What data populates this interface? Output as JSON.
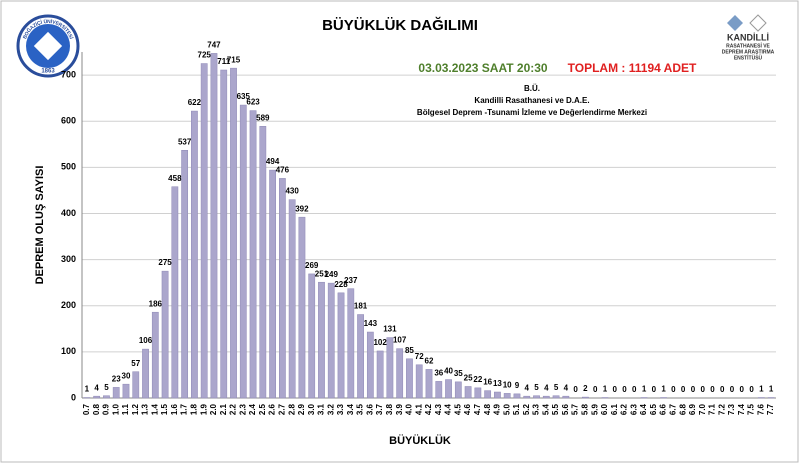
{
  "chart_data": {
    "type": "bar",
    "title": "BÜYÜKLÜK DAĞILIMI",
    "date_text": "03.03.2023 SAAT 20:30",
    "total_text": "TOPLAM : 11194 ADET",
    "subtitle_lines": [
      "B.Ü.",
      "Kandilli Rasathanesi ve D.A.E.",
      "Bölgesel Deprem -Tsunami İzleme ve Değerlendirme Merkezi"
    ],
    "x_label": "BÜYÜKLÜK",
    "y_label": "DEPREM OLUŞ SAYISI",
    "categories": [
      "0.7",
      "0.8",
      "0.9",
      "1.0",
      "1.1",
      "1.2",
      "1.3",
      "1.4",
      "1.5",
      "1.6",
      "1.7",
      "1.8",
      "1.9",
      "2.0",
      "2.1",
      "2.2",
      "2.3",
      "2.4",
      "2.5",
      "2.6",
      "2.7",
      "2.8",
      "2.9",
      "3.0",
      "3.1",
      "3.2",
      "3.3",
      "3.4",
      "3.5",
      "3.6",
      "3.7",
      "3.8",
      "3.9",
      "4.0",
      "4.1",
      "4.2",
      "4.3",
      "4.4",
      "4.5",
      "4.6",
      "4.7",
      "4.8",
      "4.9",
      "5.0",
      "5.1",
      "5.2",
      "5.3",
      "5.4",
      "5.5",
      "5.6",
      "5.7",
      "5.8",
      "5.9",
      "6.0",
      "6.1",
      "6.2",
      "6.3",
      "6.4",
      "6.5",
      "6.6",
      "6.7",
      "6.8",
      "6.9",
      "7.0",
      "7.1",
      "7.2",
      "7.3",
      "7.4",
      "7.5",
      "7.6",
      "7.7"
    ],
    "values": [
      1,
      4,
      5,
      23,
      30,
      57,
      106,
      186,
      275,
      458,
      537,
      622,
      725,
      747,
      711,
      715,
      635,
      623,
      589,
      494,
      476,
      430,
      392,
      269,
      251,
      249,
      228,
      237,
      181,
      143,
      102,
      131,
      107,
      85,
      72,
      62,
      36,
      40,
      35,
      25,
      22,
      16,
      13,
      10,
      9,
      4,
      5,
      4,
      5,
      4,
      0,
      2,
      0,
      1,
      0,
      0,
      0,
      1,
      0,
      1,
      0,
      0,
      0,
      0,
      0,
      0,
      0,
      0,
      0,
      1,
      1
    ],
    "color": "#aba6cc",
    "ylim": [
      0,
      750
    ],
    "yticks": [
      0,
      100,
      200,
      300,
      400,
      500,
      600,
      700
    ],
    "grid": true
  },
  "logos": {
    "left_name": "BOĞAZİÇİ ÜNİVERSİTESİ",
    "left_year": "1863",
    "right_name": "KANDİLLİ",
    "right_line1": "RASATHANESİ VE",
    "right_line2": "DEPREM ARAŞTIRMA",
    "right_line3": "ENSTİTÜSÜ"
  }
}
